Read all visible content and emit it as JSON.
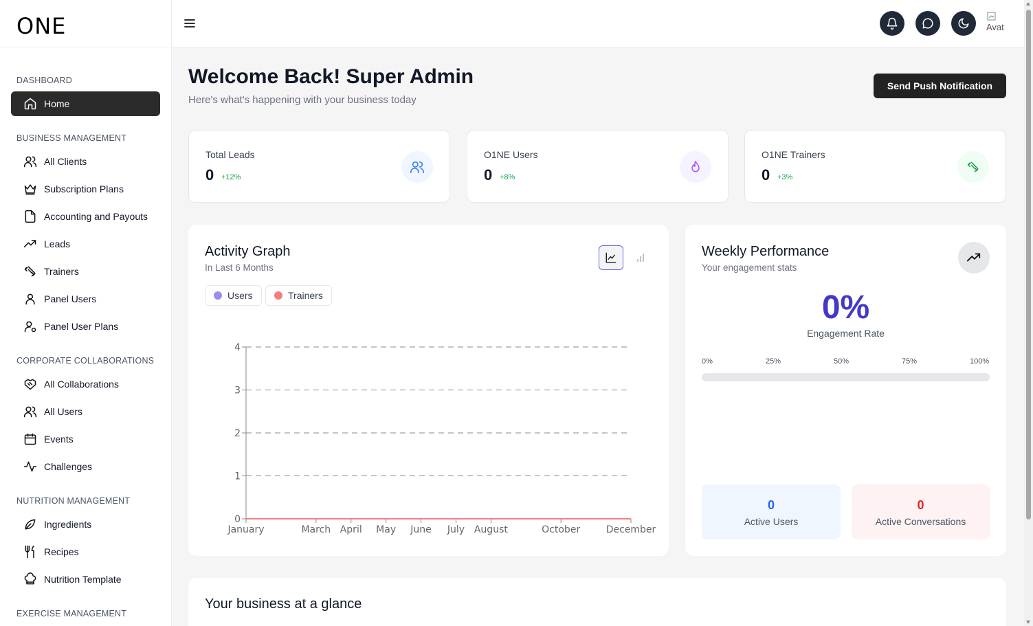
{
  "brand": {
    "logo": "ONE"
  },
  "sidebar": {
    "sections": [
      {
        "label": "DASHBOARD"
      },
      {
        "label": "BUSINESS MANAGEMENT"
      },
      {
        "label": "CORPORATE COLLABORATIONS"
      },
      {
        "label": "NUTRITION MANAGEMENT"
      },
      {
        "label": "EXERCISE MANAGEMENT"
      }
    ],
    "items": [
      {
        "label": "Home",
        "icon": "home-icon",
        "active": true
      },
      {
        "label": "All Clients",
        "icon": "users-icon"
      },
      {
        "label": "Subscription Plans",
        "icon": "crown-icon"
      },
      {
        "label": "Accounting and Payouts",
        "icon": "file-icon"
      },
      {
        "label": "Leads",
        "icon": "trending-up-icon"
      },
      {
        "label": "Trainers",
        "icon": "dumbbell-icon"
      },
      {
        "label": "Panel Users",
        "icon": "user-icon"
      },
      {
        "label": "Panel User Plans",
        "icon": "user-cog-icon"
      },
      {
        "label": "All Collaborations",
        "icon": "handshake-icon"
      },
      {
        "label": "All Users",
        "icon": "users-icon"
      },
      {
        "label": "Events",
        "icon": "calendar-icon"
      },
      {
        "label": "Challenges",
        "icon": "activity-icon"
      },
      {
        "label": "Ingredients",
        "icon": "leaf-icon"
      },
      {
        "label": "Recipes",
        "icon": "utensils-icon"
      },
      {
        "label": "Nutrition Template",
        "icon": "chef-hat-icon"
      }
    ]
  },
  "header": {
    "avatar_alt": "Avat"
  },
  "main": {
    "title": "Welcome Back! Super Admin",
    "subtitle": "Here's what's happening with your business today",
    "push_button": "Send Push Notification",
    "stats": [
      {
        "label": "Total Leads",
        "value": "0",
        "change": "+12%",
        "icon": "users-icon",
        "icon_color": "#3b82f6",
        "icon_bg": "#eff6ff"
      },
      {
        "label": "O1NE Users",
        "value": "0",
        "change": "+8%",
        "icon": "flame-icon",
        "icon_color": "#a855f7",
        "icon_bg": "#f5f3ff"
      },
      {
        "label": "O1NE Trainers",
        "value": "0",
        "change": "+3%",
        "icon": "dumbbell-icon",
        "icon_color": "#16a34a",
        "icon_bg": "#f0fdf4"
      }
    ],
    "activity": {
      "title": "Activity Graph",
      "subtitle": "In Last 6 Months",
      "legend": [
        {
          "name": "Users",
          "color": "#9b8cf0"
        },
        {
          "name": "Trainers",
          "color": "#f08080"
        }
      ]
    },
    "weekly": {
      "title": "Weekly Performance",
      "subtitle": "Your engagement stats",
      "engagement_value": "0%",
      "engagement_label": "Engagement Rate",
      "engagement_fraction": 0,
      "ticks": [
        "0%",
        "25%",
        "50%",
        "75%",
        "100%"
      ],
      "active_users_value": "0",
      "active_users_label": "Active Users",
      "active_conversations_value": "0",
      "active_conversations_label": "Active Conversations"
    },
    "glance_title": "Your business at a glance"
  },
  "chart_data": {
    "type": "line",
    "x": [
      "January",
      "March",
      "April",
      "May",
      "June",
      "July",
      "August",
      "October",
      "December"
    ],
    "series": [
      {
        "name": "Users",
        "values": [
          0,
          0,
          0,
          0,
          0,
          0,
          0,
          0,
          0
        ],
        "color": "#9b8cf0"
      },
      {
        "name": "Trainers",
        "values": [
          0,
          0,
          0,
          0,
          0,
          0,
          0,
          0,
          0
        ],
        "color": "#f08080"
      }
    ],
    "x_months_index": [
      0,
      2,
      3,
      4,
      5,
      6,
      7,
      9,
      11
    ],
    "yticks": [
      0,
      1,
      2,
      3,
      4
    ],
    "ylim": [
      0,
      4
    ],
    "grid": true,
    "legend": "top-left"
  }
}
